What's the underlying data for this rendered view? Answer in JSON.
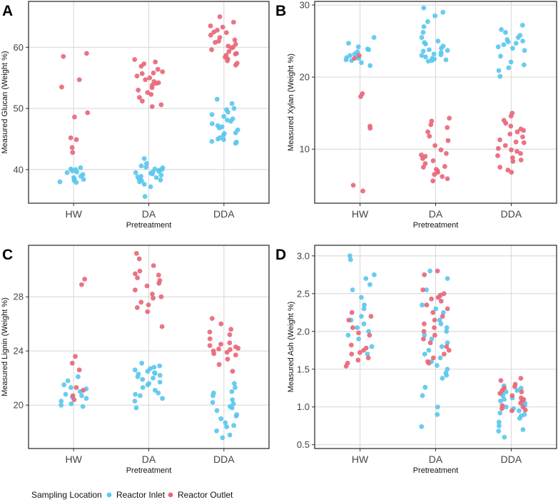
{
  "figure": {
    "legend": {
      "title": "Sampling Location",
      "items": [
        {
          "label": "Reactor Inlet",
          "color": "#5bc8ee"
        },
        {
          "label": "Reactor Outlet",
          "color": "#e8687a"
        }
      ]
    }
  },
  "chart_data": [
    {
      "type": "scatter",
      "panel": "A",
      "title": "",
      "xlabel": "Pretreatment",
      "ylabel": "Measured Glucan (Weight %)",
      "categories": [
        "HW",
        "DA",
        "DDA"
      ],
      "ylim": [
        34.5,
        67.5
      ],
      "yticks": [
        40,
        50,
        60
      ],
      "grid": true,
      "series": [
        {
          "name": "Reactor Inlet",
          "groups": [
            [
              40.3,
              40.0,
              39.8,
              39.5,
              39.2,
              38.9,
              38.7,
              38.5,
              38.2,
              38.0,
              37.9,
              39.6,
              40.1,
              38.4
            ],
            [
              41.8,
              41.0,
              40.6,
              40.3,
              40.1,
              39.9,
              39.7,
              39.5,
              39.3,
              39.1,
              38.9,
              38.7,
              38.5,
              38.3,
              38.0,
              37.6,
              37.2,
              35.6,
              40.4,
              39.4,
              38.8,
              39.6,
              40.0,
              38.2
            ],
            [
              51.5,
              50.8,
              50.0,
              49.4,
              49.0,
              48.7,
              48.3,
              47.9,
              47.5,
              47.0,
              46.5,
              46.0,
              45.6,
              45.2,
              44.9,
              44.6,
              44.3,
              45.0,
              46.8,
              48.1,
              49.8,
              45.9,
              47.2,
              44.5
            ]
          ]
        },
        {
          "name": "Reactor Outlet",
          "groups": [
            [
              59.0,
              58.5,
              54.7,
              53.5,
              49.3,
              48.6,
              45.2,
              44.9,
              43.6,
              42.8
            ],
            [
              58.0,
              57.6,
              57.3,
              56.9,
              56.4,
              56.0,
              55.7,
              55.3,
              55.0,
              54.7,
              54.4,
              54.1,
              53.8,
              53.4,
              53.0,
              52.6,
              52.3,
              51.8,
              51.2,
              50.6,
              50.3,
              55.8,
              54.2
            ],
            [
              65.0,
              64.1,
              63.3,
              62.8,
              62.4,
              62.0,
              61.6,
              61.2,
              60.8,
              60.5,
              60.2,
              59.9,
              59.6,
              59.3,
              59.0,
              58.7,
              58.4,
              58.1,
              57.8,
              57.4,
              57.1,
              63.5,
              60.0,
              58.9,
              61.0,
              62.5
            ]
          ]
        }
      ]
    },
    {
      "type": "scatter",
      "panel": "B",
      "title": "",
      "xlabel": "Pretreatment",
      "ylabel": "Measured Xylan (Weight %)",
      "categories": [
        "HW",
        "DA",
        "DDA"
      ],
      "ylim": [
        2.5,
        30.5
      ],
      "yticks": [
        10,
        20,
        30
      ],
      "grid": true,
      "series": [
        {
          "name": "Reactor Inlet",
          "groups": [
            [
              25.5,
              24.7,
              24.2,
              23.8,
              23.5,
              23.2,
              23.0,
              22.8,
              22.6,
              22.4,
              22.3,
              22.0,
              21.6,
              23.9,
              22.7
            ],
            [
              29.6,
              29.0,
              28.5,
              27.7,
              27.0,
              26.2,
              25.5,
              25.0,
              24.6,
              24.3,
              24.0,
              23.8,
              23.6,
              23.4,
              23.2,
              23.0,
              22.8,
              22.6,
              22.4,
              22.3,
              22.2,
              24.8,
              23.7,
              22.5,
              23.1
            ],
            [
              27.2,
              26.6,
              26.2,
              25.8,
              25.5,
              25.2,
              24.9,
              24.5,
              24.2,
              24.0,
              23.7,
              22.9,
              22.1,
              21.7,
              21.3,
              20.9,
              20.1,
              25.0,
              24.7
            ]
          ]
        },
        {
          "name": "Reactor Outlet",
          "groups": [
            [
              23.0,
              22.6,
              17.7,
              17.3,
              13.2,
              12.9,
              5.0,
              4.2
            ],
            [
              14.3,
              13.9,
              13.4,
              13.0,
              12.4,
              11.8,
              11.2,
              10.5,
              9.9,
              9.4,
              9.0,
              8.7,
              8.4,
              8.0,
              7.6,
              7.2,
              7.0,
              6.8,
              6.5,
              6.2,
              5.9,
              5.6,
              9.2,
              7.5
            ],
            [
              15.0,
              14.6,
              14.0,
              13.6,
              13.2,
              12.8,
              12.4,
              12.1,
              11.7,
              11.3,
              10.9,
              10.5,
              10.1,
              9.7,
              9.4,
              9.1,
              8.8,
              8.5,
              8.3,
              7.5,
              7.1,
              6.8,
              12.6,
              11.0,
              9.9
            ]
          ]
        }
      ]
    },
    {
      "type": "scatter",
      "panel": "C",
      "title": "",
      "xlabel": "Pretreatment",
      "ylabel": "Measured Lignin (Weight %)",
      "categories": [
        "HW",
        "DA",
        "DDA"
      ],
      "ylim": [
        16.8,
        31.8
      ],
      "yticks": [
        20,
        24,
        28
      ],
      "grid": true,
      "series": [
        {
          "name": "Reactor Inlet",
          "groups": [
            [
              22.1,
              21.8,
              21.5,
              21.2,
              21.0,
              20.8,
              20.7,
              20.5,
              20.3,
              20.1,
              20.0,
              19.9,
              21.3,
              20.6
            ],
            [
              23.1,
              22.9,
              22.7,
              22.6,
              22.5,
              22.4,
              22.3,
              22.2,
              22.1,
              22.0,
              21.9,
              21.7,
              21.5,
              21.3,
              21.1,
              20.9,
              20.7,
              20.5,
              20.3,
              19.8,
              22.8,
              21.6,
              20.8,
              22.35
            ],
            [
              21.6,
              21.3,
              21.0,
              20.7,
              20.4,
              20.1,
              19.9,
              19.6,
              19.3,
              19.0,
              18.7,
              18.4,
              18.1,
              17.8,
              17.6,
              20.9,
              19.2,
              18.5,
              19.8,
              20.2
            ]
          ]
        },
        {
          "name": "Reactor Outlet",
          "groups": [
            [
              29.3,
              28.9,
              23.6,
              23.1,
              22.6,
              21.3,
              21.1,
              20.7,
              20.4
            ],
            [
              31.2,
              30.8,
              30.3,
              29.9,
              29.6,
              29.4,
              29.2,
              29.0,
              28.8,
              28.5,
              28.2,
              27.9,
              27.6,
              27.4,
              27.2,
              26.9,
              25.8,
              29.7,
              28.0
            ],
            [
              26.4,
              26.0,
              25.6,
              25.2,
              24.9,
              24.6,
              24.4,
              24.3,
              24.2,
              24.1,
              24.0,
              23.9,
              23.7,
              23.4,
              23.0,
              22.5,
              24.5,
              24.15,
              25.4,
              23.8
            ]
          ]
        }
      ]
    },
    {
      "type": "scatter",
      "panel": "D",
      "title": "",
      "xlabel": "Pretreatment",
      "ylabel": "Measured Ash (Weight %)",
      "categories": [
        "HW",
        "DA",
        "DDA"
      ],
      "ylim": [
        0.45,
        3.14
      ],
      "yticks": [
        0.5,
        1.0,
        1.5,
        2.0,
        2.5,
        3.0
      ],
      "grid": true,
      "series": [
        {
          "name": "Reactor Inlet",
          "groups": [
            [
              3.0,
              2.95,
              2.75,
              2.7,
              2.62,
              2.55,
              2.45,
              2.35,
              2.3,
              2.2,
              2.15,
              2.1,
              2.05,
              2.0,
              1.95,
              1.9,
              1.8,
              1.7
            ],
            [
              2.8,
              2.7,
              2.55,
              2.45,
              2.35,
              2.3,
              2.25,
              2.15,
              2.1,
              2.05,
              2.0,
              1.95,
              1.9,
              1.85,
              1.8,
              1.75,
              1.7,
              1.65,
              1.6,
              1.55,
              1.5,
              1.45,
              1.42,
              1.38,
              1.26,
              1.15,
              1.0,
              0.9,
              0.74
            ],
            [
              1.28,
              1.25,
              1.22,
              1.2,
              1.18,
              1.15,
              1.12,
              1.1,
              1.08,
              1.05,
              1.02,
              1.0,
              0.98,
              0.95,
              0.92,
              0.9,
              0.88,
              0.85,
              0.8,
              0.75,
              0.7,
              0.68,
              0.6
            ]
          ]
        },
        {
          "name": "Reactor Outlet",
          "groups": [
            [
              2.25,
              2.2,
              2.15,
              2.05,
              1.98,
              1.95,
              1.82,
              1.78,
              1.75,
              1.72,
              1.7,
              1.65,
              1.62,
              1.58,
              1.54
            ],
            [
              2.8,
              2.75,
              2.55,
              2.5,
              2.48,
              2.45,
              2.43,
              2.4,
              2.35,
              2.3,
              2.25,
              2.2,
              2.15,
              2.1,
              2.05,
              2.0,
              1.95,
              1.9,
              1.85,
              1.8,
              1.75,
              1.7,
              1.65,
              1.6,
              1.58
            ],
            [
              1.38,
              1.35,
              1.3,
              1.27,
              1.25,
              1.22,
              1.2,
              1.18,
              1.15,
              1.12,
              1.1,
              1.08,
              1.05,
              1.02,
              1.0,
              0.98,
              0.96,
              0.95
            ]
          ]
        }
      ]
    }
  ]
}
